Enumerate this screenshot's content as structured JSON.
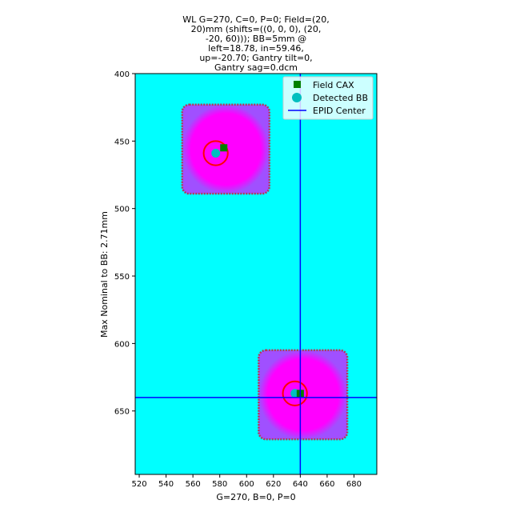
{
  "chart_data": {
    "type": "heatmap",
    "title_lines": [
      "WL G=270, C=0, P=0; Field=(20,",
      "20)mm (shifts=((0, 0, 0), (20,",
      "-20, 60))); BB=5mm @",
      "left=18.78, in=59.46,",
      "up=-20.70; Gantry tilt=0,",
      "Gantry sag=0.dcm"
    ],
    "xlabel": "G=270, B=0, P=0",
    "ylabel": "Max Nominal to BB: 2.71mm",
    "xlim": [
      517,
      697
    ],
    "ylim": [
      697,
      400
    ],
    "y_inverted": true,
    "xticks": [
      520,
      540,
      560,
      580,
      600,
      620,
      640,
      660,
      680
    ],
    "yticks": [
      400,
      450,
      500,
      550,
      600,
      650
    ],
    "grid": false,
    "background_color": "#00ffff",
    "field_color": "#ff00ff",
    "field_edge_color": "#b03a5a",
    "fields": [
      {
        "x0": 552,
        "x1": 617,
        "y0": 423,
        "y1": 489
      },
      {
        "x0": 609,
        "x1": 675,
        "y0": 605,
        "y1": 671
      }
    ],
    "field_cax_points": [
      {
        "x": 583,
        "y": 455
      },
      {
        "x": 640,
        "y": 637
      }
    ],
    "detected_bb_points": [
      {
        "x": 577,
        "y": 459
      },
      {
        "x": 636,
        "y": 637
      }
    ],
    "bb_circles": [
      {
        "x": 577,
        "y": 459,
        "r": 9
      },
      {
        "x": 636,
        "y": 637,
        "r": 9
      }
    ],
    "epid_center": {
      "x": 640,
      "y": 640
    },
    "legend": {
      "placement": "top-right",
      "entries": [
        {
          "label": "Field CAX",
          "marker": "square",
          "color": "#008000"
        },
        {
          "label": "Detected BB",
          "marker": "circle",
          "color": "#00bfbf"
        },
        {
          "label": "EPID Center",
          "marker": "line",
          "color": "#0000ff"
        }
      ]
    },
    "colors": {
      "field_cax": "#008000",
      "detected_bb": "#00bfbf",
      "bb_circle": "#ff0000",
      "epid_line": "#0000ff"
    }
  }
}
